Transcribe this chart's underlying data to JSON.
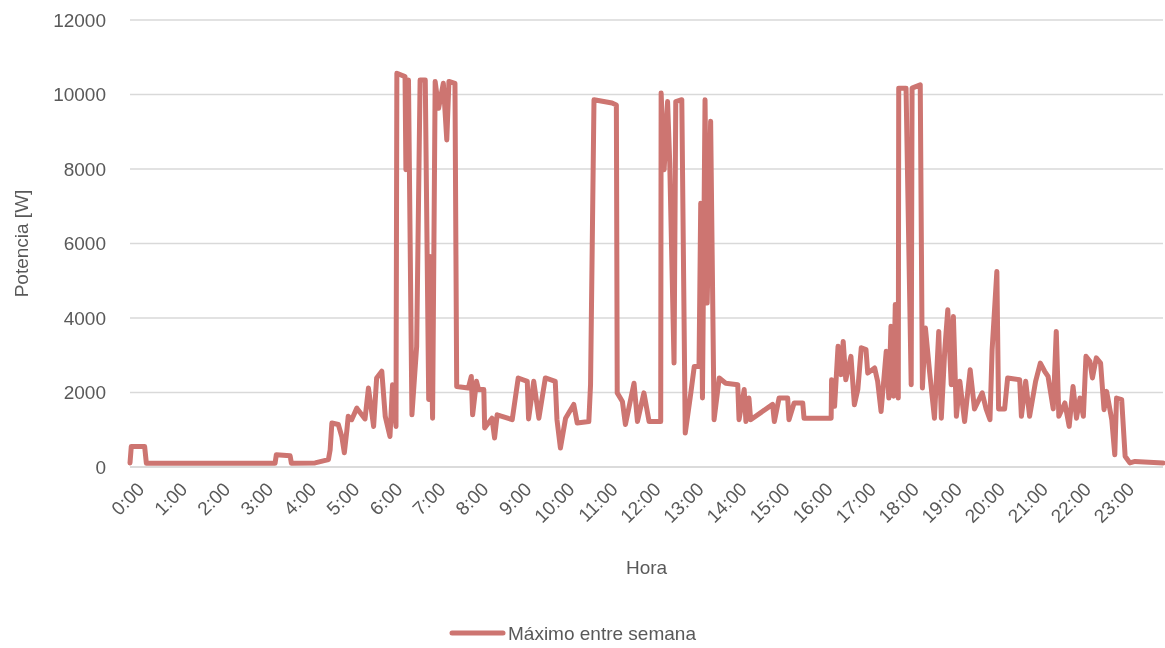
{
  "chart_data": {
    "type": "line",
    "xlabel": "Hora",
    "ylabel": "Potencia [W]",
    "xlim": [
      0,
      24
    ],
    "xticks": [
      {
        "value": 0,
        "label": "0:00"
      },
      {
        "value": 1,
        "label": "1:00"
      },
      {
        "value": 2,
        "label": "2:00"
      },
      {
        "value": 3,
        "label": "3:00"
      },
      {
        "value": 4,
        "label": "4:00"
      },
      {
        "value": 5,
        "label": "5:00"
      },
      {
        "value": 6,
        "label": "6:00"
      },
      {
        "value": 7,
        "label": "7:00"
      },
      {
        "value": 8,
        "label": "8:00"
      },
      {
        "value": 9,
        "label": "9:00"
      },
      {
        "value": 10,
        "label": "10:00"
      },
      {
        "value": 11,
        "label": "11:00"
      },
      {
        "value": 12,
        "label": "12:00"
      },
      {
        "value": 13,
        "label": "13:00"
      },
      {
        "value": 14,
        "label": "14:00"
      },
      {
        "value": 15,
        "label": "15:00"
      },
      {
        "value": 16,
        "label": "16:00"
      },
      {
        "value": 17,
        "label": "17:00"
      },
      {
        "value": 18,
        "label": "18:00"
      },
      {
        "value": 19,
        "label": "19:00"
      },
      {
        "value": 20,
        "label": "20:00"
      },
      {
        "value": 21,
        "label": "21:00"
      },
      {
        "value": 22,
        "label": "22:00"
      },
      {
        "value": 23,
        "label": "23:00"
      }
    ],
    "ylim": [
      0,
      12000
    ],
    "yticks": [
      0,
      2000,
      4000,
      6000,
      8000,
      10000,
      12000
    ],
    "grid": "y",
    "legend": "bottom",
    "marker": "none",
    "line_style": "solid",
    "series": [
      {
        "name": "Máximo entre semana",
        "color": "#cd7571",
        "x": [
          0,
          0.03,
          0.34,
          0.38,
          3.37,
          3.4,
          3.72,
          3.75,
          4.3,
          4.61,
          4.65,
          4.69,
          4.84,
          4.92,
          4.98,
          5.04,
          5.07,
          5.15,
          5.27,
          5.46,
          5.54,
          5.66,
          5.73,
          5.85,
          5.93,
          6.04,
          6.1,
          6.18,
          6.2,
          6.39,
          6.41,
          6.47,
          6.55,
          6.66,
          6.74,
          6.86,
          6.94,
          6.97,
          7.03,
          7.09,
          7.17,
          7.28,
          7.36,
          7.41,
          7.55,
          7.59,
          7.86,
          7.93,
          7.96,
          8.05,
          8.1,
          8.22,
          8.24,
          8.41,
          8.47,
          8.53,
          8.88,
          9.02,
          9.23,
          9.26,
          9.38,
          9.5,
          9.65,
          9.88,
          9.92,
          10.0,
          10.12,
          10.31,
          10.39,
          10.66,
          10.7,
          10.78,
          11.2,
          11.3,
          11.32,
          11.44,
          11.51,
          11.71,
          11.79,
          11.94,
          12.06,
          12.33,
          12.34,
          12.41,
          12.49,
          12.54,
          12.64,
          12.68,
          12.82,
          12.9,
          13.03,
          13.11,
          13.22,
          13.26,
          13.3,
          13.36,
          13.41,
          13.49,
          13.57,
          13.69,
          13.84,
          14.12,
          14.15,
          14.27,
          14.31,
          14.38,
          14.42,
          14.93,
          14.97,
          15.08,
          15.28,
          15.31,
          15.43,
          15.63,
          15.66,
          16.29,
          16.3,
          16.37,
          16.45,
          16.52,
          16.57,
          16.63,
          16.75,
          16.83,
          16.91,
          16.99,
          17.1,
          17.14,
          17.3,
          17.37,
          17.45,
          17.57,
          17.63,
          17.68,
          17.74,
          17.78,
          17.85,
          17.86,
          18.03,
          18.15,
          18.17,
          18.36,
          18.41,
          18.48,
          18.58,
          18.69,
          18.79,
          18.85,
          18.93,
          19.0,
          19.08,
          19.13,
          19.2,
          19.28,
          19.39,
          19.52,
          19.62,
          19.8,
          19.89,
          19.98,
          20.03,
          20.14,
          20.18,
          20.32,
          20.39,
          20.67,
          20.71,
          20.81,
          20.9,
          21.04,
          21.15,
          21.25,
          21.33,
          21.45,
          21.52,
          21.58,
          21.72,
          21.82,
          21.91,
          21.99,
          22.07,
          22.15,
          22.21,
          22.3,
          22.36,
          22.45,
          22.55,
          22.63,
          22.69,
          22.81,
          22.88,
          22.92,
          23.04,
          23.12,
          23.23,
          23.35,
          24.0
        ],
        "values": [
          110,
          550,
          550,
          100,
          100,
          330,
          300,
          100,
          110,
          200,
          460,
          1180,
          1140,
          820,
          380,
          1000,
          1360,
          1270,
          1580,
          1290,
          2120,
          1090,
          2390,
          2570,
          1360,
          820,
          2210,
          1090,
          10570,
          10480,
          7980,
          10390,
          1400,
          3240,
          10390,
          10390,
          1810,
          5650,
          1310,
          10350,
          9630,
          10300,
          8780,
          10350,
          10300,
          2160,
          2120,
          2430,
          1400,
          2300,
          2080,
          2080,
          1050,
          1310,
          780,
          1400,
          1270,
          2390,
          2300,
          1290,
          2300,
          1310,
          2390,
          2300,
          1270,
          510,
          1310,
          1680,
          1180,
          1220,
          2210,
          9860,
          9770,
          9720,
          1990,
          1760,
          1140,
          2250,
          1220,
          1990,
          1220,
          1220,
          10040,
          7980,
          9810,
          8160,
          2790,
          9810,
          9860,
          910,
          1990,
          2700,
          2700,
          7080,
          1850,
          9860,
          4400,
          9280,
          1270,
          2390,
          2250,
          2210,
          1270,
          2080,
          1220,
          1850,
          1270,
          1680,
          1220,
          1850,
          1850,
          1270,
          1720,
          1720,
          1310,
          1310,
          2340,
          1630,
          3240,
          2480,
          3370,
          2340,
          2970,
          1670,
          2080,
          3200,
          3150,
          2520,
          2660,
          2300,
          1490,
          3110,
          1850,
          3780,
          1900,
          4360,
          1850,
          10170,
          10170,
          2210,
          10170,
          10260,
          2120,
          3730,
          2520,
          1310,
          3640,
          1310,
          3150,
          4220,
          2210,
          4040,
          1360,
          2300,
          1220,
          2610,
          1560,
          1990,
          1560,
          1270,
          3150,
          5250,
          1560,
          1560,
          2390,
          2340,
          1360,
          2300,
          1360,
          2300,
          2790,
          2570,
          2430,
          1560,
          3640,
          1360,
          1720,
          1090,
          2160,
          1310,
          1850,
          1360,
          2970,
          2840,
          2390,
          2930,
          2790,
          1540,
          2030,
          1270,
          330,
          1850,
          1810,
          290,
          110,
          150,
          110
        ]
      }
    ]
  }
}
